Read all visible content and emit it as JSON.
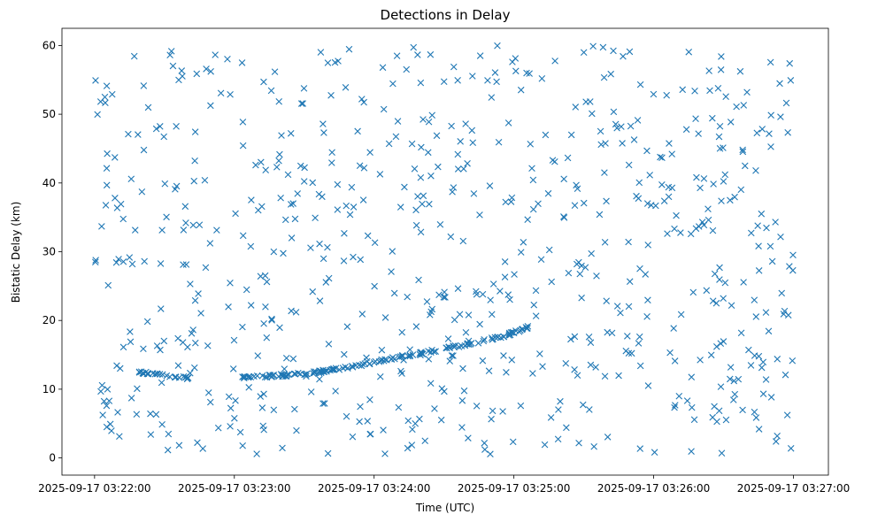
{
  "chart_data": {
    "type": "scatter",
    "title": "Detections in Delay",
    "xlabel": "Time (UTC)",
    "ylabel": "Bistatic Delay (km)",
    "x_axis": {
      "start": "2025-09-17T03:22:00",
      "end": "2025-09-17T03:27:00",
      "lim": [
        "2025-09-17T03:21:46",
        "2025-09-17T03:27:15"
      ],
      "tick_labels": [
        "2025-09-17 03:22:00",
        "2025-09-17 03:23:00",
        "2025-09-17 03:24:00",
        "2025-09-17 03:25:00",
        "2025-09-17 03:26:00",
        "2025-09-17 03:27:00"
      ]
    },
    "y_axis": {
      "lim": [
        -2.5,
        62.5
      ],
      "ticks": [
        0,
        10,
        20,
        30,
        40,
        50,
        60
      ]
    },
    "grid": false,
    "marker": "x",
    "color": "#1f77b4",
    "track_points": [
      {
        "x": "2025-09-17T03:22:18",
        "y": 12.5
      },
      {
        "x": "2025-09-17T03:22:26",
        "y": 12.2
      },
      {
        "x": "2025-09-17T03:22:34",
        "y": 11.9
      },
      {
        "x": "2025-09-17T03:22:40",
        "y": 11.6
      },
      {
        "x": "2025-09-17T03:22:42",
        "y": 11.8
      },
      {
        "x": "2025-09-17T03:23:06",
        "y": 11.7
      },
      {
        "x": "2025-09-17T03:23:20",
        "y": 12.0
      },
      {
        "x": "2025-09-17T03:23:34",
        "y": 12.4
      },
      {
        "x": "2025-09-17T03:23:46",
        "y": 13.0
      },
      {
        "x": "2025-09-17T03:23:55",
        "y": 13.6
      },
      {
        "x": "2025-09-17T03:24:08",
        "y": 14.5
      },
      {
        "x": "2025-09-17T03:24:20",
        "y": 15.2
      },
      {
        "x": "2025-09-17T03:24:32",
        "y": 16.0
      },
      {
        "x": "2025-09-17T03:24:44",
        "y": 16.8
      },
      {
        "x": "2025-09-17T03:24:54",
        "y": 17.6
      },
      {
        "x": "2025-09-17T03:25:02",
        "y": 18.4
      },
      {
        "x": "2025-09-17T03:25:06",
        "y": 19.0
      }
    ],
    "track_point_count": 200,
    "clutter_point_count": 700,
    "clutter_range": {
      "x": [
        "2025-09-17T03:22:00",
        "2025-09-17T03:27:00"
      ],
      "y": [
        0.5,
        60
      ]
    }
  }
}
